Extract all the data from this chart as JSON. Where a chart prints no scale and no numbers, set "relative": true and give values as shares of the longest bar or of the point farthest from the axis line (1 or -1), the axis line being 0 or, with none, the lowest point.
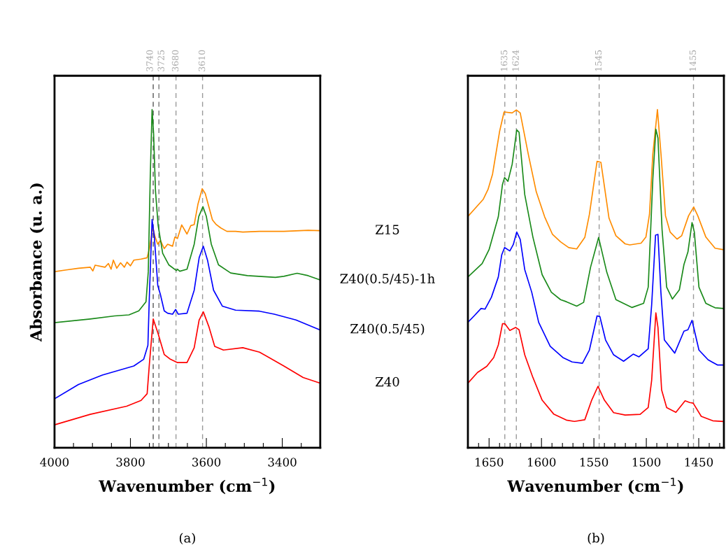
{
  "chart_data": [
    {
      "type": "line",
      "relative": true,
      "xlabel": "Wavenumber (cm$^{−1}$)",
      "ylabel": "Absorbance (u. a.)",
      "annotations": [
        "(a)"
      ],
      "xlim": [
        4000,
        3300
      ],
      "xticks": [
        4000,
        {
          "value": 3950,
          "label": null
        },
        {
          "value": 3900,
          "label": null
        },
        {
          "value": 3850,
          "label": null
        },
        3800,
        {
          "value": 3750,
          "label": null
        },
        {
          "value": 3700,
          "label": null
        },
        {
          "value": 3650,
          "label": null
        },
        3600,
        {
          "value": 3550,
          "label": null
        },
        {
          "value": 3500,
          "label": null
        },
        {
          "value": 3450,
          "label": null
        },
        3400,
        {
          "value": 3350,
          "label": null
        }
      ],
      "x2lim": [
        4000,
        3300
      ],
      "x2ticks": [
        3740,
        3725,
        3680,
        3610
      ],
      "ref_lines": [
        {
          "axis": "x",
          "value": 3740,
          "color": "#555555",
          "line_style": "dashed"
        },
        {
          "axis": "x",
          "value": 3725,
          "color": "#777777",
          "line_style": "dashed"
        },
        {
          "axis": "x",
          "value": 3680,
          "color": "#999999",
          "line_style": "dashed"
        },
        {
          "axis": "x",
          "value": 3610,
          "color": "#999999",
          "line_style": "dashed"
        }
      ],
      "grid": false,
      "legend": false,
      "marker": "none",
      "line_style": "solid",
      "series": [
        {
          "name": "Z15",
          "color": "#ff8c00",
          "x": [
            3998,
            3969,
            3937,
            3906,
            3899,
            3893,
            3867,
            3858,
            3851,
            3845,
            3836,
            3826,
            3816,
            3809,
            3800,
            3791,
            3772,
            3756,
            3750,
            3741,
            3735,
            3728,
            3721,
            3711,
            3702,
            3689,
            3683,
            3676,
            3665,
            3651,
            3641,
            3632,
            3622,
            3611,
            3603,
            3593,
            3584,
            3574,
            3562,
            3546,
            3523,
            3504,
            3460,
            3396,
            3332,
            3302
          ],
          "values": [
            0.521,
            0.526,
            0.531,
            0.534,
            0.523,
            0.54,
            0.534,
            0.545,
            0.528,
            0.555,
            0.531,
            0.547,
            0.534,
            0.549,
            0.538,
            0.555,
            0.558,
            0.562,
            0.589,
            0.652,
            0.623,
            0.602,
            0.613,
            0.589,
            0.602,
            0.596,
            0.623,
            0.619,
            0.659,
            0.632,
            0.657,
            0.66,
            0.721,
            0.766,
            0.752,
            0.711,
            0.674,
            0.66,
            0.65,
            0.64,
            0.64,
            0.638,
            0.64,
            0.64,
            0.643,
            0.642
          ]
        },
        {
          "name": "Z40(0.5/45)-1h",
          "color": "#1a8a1a",
          "x": [
            4000,
            3906,
            3842,
            3804,
            3778,
            3759,
            3753,
            3748,
            3743,
            3739,
            3734,
            3727,
            3715,
            3699,
            3679,
            3676,
            3670,
            3651,
            3632,
            3620,
            3609,
            3600,
            3587,
            3568,
            3536,
            3492,
            3418,
            3396,
            3361,
            3332,
            3302
          ],
          "values": [
            0.37,
            0.381,
            0.39,
            0.393,
            0.405,
            0.432,
            0.521,
            0.793,
            1.0,
            0.929,
            0.759,
            0.657,
            0.575,
            0.541,
            0.524,
            0.528,
            0.522,
            0.528,
            0.602,
            0.684,
            0.713,
            0.684,
            0.602,
            0.541,
            0.517,
            0.509,
            0.504,
            0.507,
            0.516,
            0.509,
            0.497
          ]
        },
        {
          "name": "Z40(0.5/45)",
          "color": "#0000ff",
          "x": [
            4000,
            3937,
            3874,
            3791,
            3765,
            3754,
            3750,
            3743,
            3737,
            3728,
            3721,
            3711,
            3702,
            3689,
            3681,
            3674,
            3651,
            3632,
            3619,
            3608,
            3597,
            3581,
            3558,
            3523,
            3460,
            3421,
            3364,
            3302
          ],
          "values": [
            0.145,
            0.187,
            0.215,
            0.242,
            0.262,
            0.303,
            0.453,
            0.675,
            0.623,
            0.48,
            0.453,
            0.405,
            0.398,
            0.395,
            0.409,
            0.395,
            0.398,
            0.466,
            0.562,
            0.596,
            0.555,
            0.466,
            0.419,
            0.407,
            0.404,
            0.395,
            0.378,
            0.349
          ]
        },
        {
          "name": "Z40",
          "color": "#ff0000",
          "x": [
            4000,
            3906,
            3810,
            3772,
            3756,
            3750,
            3740,
            3727,
            3711,
            3695,
            3676,
            3651,
            3632,
            3619,
            3608,
            3593,
            3578,
            3555,
            3504,
            3460,
            3396,
            3345,
            3302
          ],
          "values": [
            0.068,
            0.099,
            0.123,
            0.14,
            0.16,
            0.249,
            0.381,
            0.337,
            0.276,
            0.262,
            0.252,
            0.252,
            0.296,
            0.378,
            0.402,
            0.357,
            0.3,
            0.289,
            0.296,
            0.283,
            0.242,
            0.208,
            0.192
          ]
        }
      ]
    },
    {
      "type": "line",
      "relative": true,
      "xlabel": "Wavenumber (cm$^{−1}$)",
      "annotations": [
        "(b)"
      ],
      "xlim": [
        1670.2,
        1426
      ],
      "xticks": [
        {
          "value": 1660,
          "label": null
        },
        1650,
        {
          "value": 1640,
          "label": null
        },
        {
          "value": 1630,
          "label": null
        },
        {
          "value": 1620,
          "label": null
        },
        {
          "value": 1610,
          "label": null
        },
        1600,
        {
          "value": 1590,
          "label": null
        },
        {
          "value": 1580,
          "label": null
        },
        {
          "value": 1570,
          "label": null
        },
        {
          "value": 1560,
          "label": null
        },
        1550,
        {
          "value": 1540,
          "label": null
        },
        {
          "value": 1530,
          "label": null
        },
        {
          "value": 1520,
          "label": null
        },
        {
          "value": 1510,
          "label": null
        },
        1500,
        {
          "value": 1490,
          "label": null
        },
        {
          "value": 1480,
          "label": null
        },
        {
          "value": 1470,
          "label": null
        },
        {
          "value": 1460,
          "label": null
        },
        1450,
        {
          "value": 1440,
          "label": null
        },
        {
          "value": 1430,
          "label": null
        }
      ],
      "x2lim": [
        1670.2,
        1426
      ],
      "x2ticks": [
        1635,
        1624,
        1545,
        1455
      ],
      "ref_lines": [
        {
          "axis": "x",
          "value": 1635,
          "color": "#999999",
          "line_style": "dashed"
        },
        {
          "axis": "x",
          "value": 1624,
          "color": "#999999",
          "line_style": "dashed"
        },
        {
          "axis": "x",
          "value": 1545,
          "color": "#999999",
          "line_style": "dashed"
        },
        {
          "axis": "x",
          "value": 1455,
          "color": "#999999",
          "line_style": "dashed"
        }
      ],
      "grid": false,
      "legend": false,
      "marker": "none",
      "line_style": "solid",
      "series": [
        {
          "color": "#ff8c00",
          "x": [
            1670.2,
            1655.5,
            1651,
            1646.7,
            1640,
            1635.7,
            1628,
            1624,
            1620.3,
            1612.6,
            1605,
            1597,
            1589.5,
            1581.8,
            1574,
            1566.4,
            1558.7,
            1554.3,
            1547,
            1543.3,
            1535.6,
            1529,
            1520.2,
            1515.8,
            1505,
            1500.4,
            1497,
            1493.8,
            1489.4,
            1486,
            1481.7,
            1477.3,
            1470.7,
            1466.3,
            1459.7,
            1454.8,
            1450.9,
            1443.2,
            1434.4,
            1426.7
          ],
          "values": [
            0.684,
            0.735,
            0.764,
            0.809,
            0.935,
            0.993,
            0.99,
            0.999,
            0.99,
            0.868,
            0.757,
            0.683,
            0.631,
            0.609,
            0.592,
            0.588,
            0.622,
            0.69,
            0.847,
            0.844,
            0.679,
            0.627,
            0.603,
            0.6,
            0.605,
            0.623,
            0.69,
            0.868,
            1.0,
            0.868,
            0.686,
            0.638,
            0.617,
            0.627,
            0.686,
            0.712,
            0.686,
            0.623,
            0.59,
            0.586
          ]
        },
        {
          "color": "#1a8a1a",
          "x": [
            1670.2,
            1656.6,
            1650,
            1641.2,
            1637.2,
            1635.2,
            1632,
            1628,
            1623.6,
            1621.4,
            1616,
            1608.2,
            1599.4,
            1590.6,
            1581.8,
            1576.3,
            1566.4,
            1559.8,
            1553.2,
            1545.5,
            1537.7,
            1529,
            1513.6,
            1502.6,
            1498.2,
            1493.8,
            1490.9,
            1488.9,
            1485,
            1480.6,
            1475.1,
            1468.5,
            1464.1,
            1460.3,
            1456.4,
            1454.2,
            1449.8,
            1443.2,
            1434.4,
            1426.7
          ],
          "values": [
            0.505,
            0.545,
            0.586,
            0.683,
            0.779,
            0.799,
            0.788,
            0.838,
            0.94,
            0.933,
            0.749,
            0.623,
            0.512,
            0.46,
            0.438,
            0.432,
            0.419,
            0.43,
            0.534,
            0.622,
            0.519,
            0.438,
            0.415,
            0.427,
            0.475,
            0.794,
            0.942,
            0.916,
            0.646,
            0.475,
            0.44,
            0.467,
            0.542,
            0.579,
            0.666,
            0.638,
            0.475,
            0.427,
            0.414,
            0.412
          ]
        },
        {
          "color": "#0000ff",
          "x": [
            1670.2,
            1664.3,
            1657.7,
            1653.9,
            1647.8,
            1641.2,
            1637.9,
            1635.2,
            1630.2,
            1626.9,
            1623.6,
            1620.3,
            1616,
            1609.3,
            1602.7,
            1591.7,
            1579.6,
            1570.8,
            1560.9,
            1554.3,
            1547,
            1544.3,
            1538.9,
            1531.2,
            1521.7,
            1512.5,
            1507,
            1498.2,
            1494.9,
            1491.2,
            1488.9,
            1486.1,
            1482.8,
            1472.9,
            1464.1,
            1460.3,
            1456.4,
            1449.8,
            1441,
            1432.2,
            1426.7
          ],
          "values": [
            0.371,
            0.39,
            0.412,
            0.41,
            0.445,
            0.505,
            0.571,
            0.592,
            0.582,
            0.601,
            0.638,
            0.616,
            0.527,
            0.46,
            0.371,
            0.3,
            0.267,
            0.254,
            0.25,
            0.289,
            0.39,
            0.388,
            0.319,
            0.275,
            0.256,
            0.277,
            0.269,
            0.293,
            0.423,
            0.629,
            0.631,
            0.46,
            0.319,
            0.28,
            0.345,
            0.349,
            0.377,
            0.289,
            0.26,
            0.245,
            0.245
          ]
        },
        {
          "color": "#ff0000",
          "x": [
            1670.2,
            1661,
            1652.2,
            1645.6,
            1641.2,
            1637.2,
            1635,
            1630.2,
            1624.7,
            1621.4,
            1616,
            1608.2,
            1599.4,
            1588.4,
            1576.3,
            1568.6,
            1558.7,
            1552.1,
            1546.1,
            1540,
            1531.2,
            1520.2,
            1505.9,
            1498.2,
            1494.9,
            1490.9,
            1488.9,
            1485.4,
            1480.6,
            1471.8,
            1463,
            1458.6,
            1455.3,
            1447.6,
            1436.6,
            1426.7
          ],
          "values": [
            0.191,
            0.223,
            0.241,
            0.267,
            0.304,
            0.367,
            0.367,
            0.347,
            0.356,
            0.349,
            0.275,
            0.208,
            0.141,
            0.1,
            0.082,
            0.078,
            0.083,
            0.141,
            0.182,
            0.141,
            0.104,
            0.097,
            0.099,
            0.119,
            0.2,
            0.399,
            0.356,
            0.171,
            0.119,
            0.105,
            0.139,
            0.134,
            0.132,
            0.093,
            0.08,
            0.078
          ]
        }
      ]
    }
  ]
}
